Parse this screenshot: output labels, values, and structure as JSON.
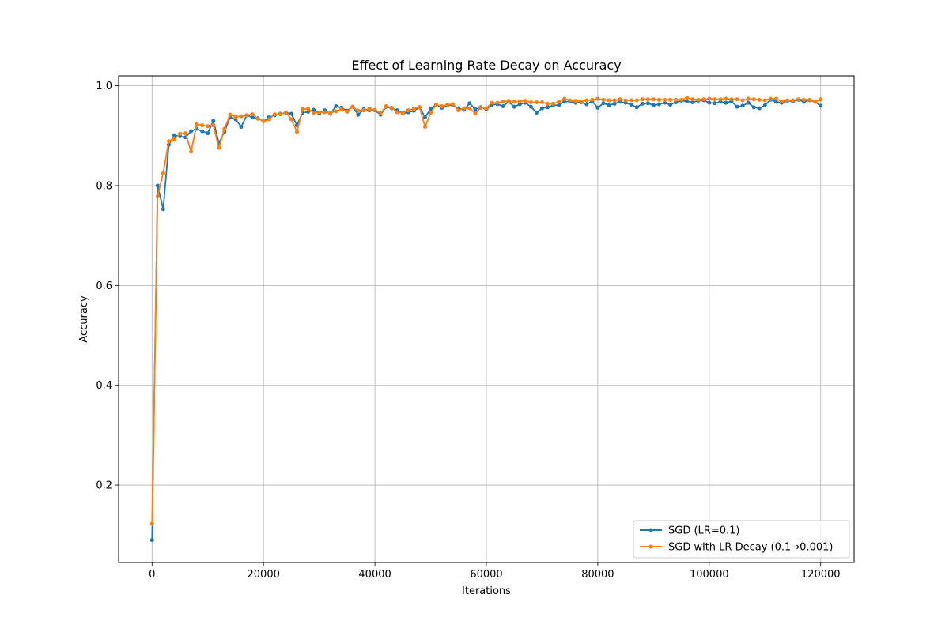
{
  "chart_data": {
    "type": "line",
    "title": "Effect of Learning Rate Decay on Accuracy",
    "xlabel": "Iterations",
    "ylabel": "Accuracy",
    "xlim": [
      -6000,
      126000
    ],
    "ylim": [
      0.045,
      1.02
    ],
    "xticks": [
      0,
      20000,
      40000,
      60000,
      80000,
      100000,
      120000
    ],
    "xtick_labels": [
      "0",
      "20000",
      "40000",
      "60000",
      "80000",
      "100000",
      "120000"
    ],
    "yticks": [
      0.2,
      0.4,
      0.6,
      0.8,
      1.0
    ],
    "ytick_labels": [
      "0.2",
      "0.4",
      "0.6",
      "0.8",
      "1.0"
    ],
    "grid": true,
    "legend_position": "lower-right",
    "x": [
      0,
      1000,
      2000,
      3000,
      4000,
      5000,
      6000,
      7000,
      8000,
      9000,
      10000,
      11000,
      12000,
      13000,
      14000,
      15000,
      16000,
      17000,
      18000,
      19000,
      20000,
      21000,
      22000,
      23000,
      24000,
      25000,
      26000,
      27000,
      28000,
      29000,
      30000,
      31000,
      32000,
      33000,
      34000,
      35000,
      36000,
      37000,
      38000,
      39000,
      40000,
      41000,
      42000,
      43000,
      44000,
      45000,
      46000,
      47000,
      48000,
      49000,
      50000,
      51000,
      52000,
      53000,
      54000,
      55000,
      56000,
      57000,
      58000,
      59000,
      60000,
      61000,
      62000,
      63000,
      64000,
      65000,
      66000,
      67000,
      68000,
      69000,
      70000,
      71000,
      72000,
      73000,
      74000,
      75000,
      76000,
      77000,
      78000,
      79000,
      80000,
      81000,
      82000,
      83000,
      84000,
      85000,
      86000,
      87000,
      88000,
      89000,
      90000,
      91000,
      92000,
      93000,
      94000,
      95000,
      96000,
      97000,
      98000,
      99000,
      100000,
      101000,
      102000,
      103000,
      104000,
      105000,
      106000,
      107000,
      108000,
      109000,
      110000,
      111000,
      112000,
      113000,
      114000,
      115000,
      116000,
      117000,
      118000,
      119000,
      120000
    ],
    "series": [
      {
        "name": "SGD (LR=0.1)",
        "color": "#1f77b4",
        "values": [
          0.09,
          0.8,
          0.753,
          0.882,
          0.901,
          0.899,
          0.897,
          0.909,
          0.914,
          0.909,
          0.905,
          0.93,
          0.885,
          0.908,
          0.937,
          0.933,
          0.918,
          0.941,
          0.937,
          0.935,
          0.929,
          0.937,
          0.941,
          0.944,
          0.946,
          0.944,
          0.921,
          0.946,
          0.948,
          0.952,
          0.945,
          0.951,
          0.944,
          0.959,
          0.956,
          0.95,
          0.958,
          0.942,
          0.953,
          0.951,
          0.951,
          0.942,
          0.958,
          0.955,
          0.951,
          0.945,
          0.947,
          0.95,
          0.957,
          0.937,
          0.954,
          0.962,
          0.956,
          0.961,
          0.961,
          0.955,
          0.952,
          0.965,
          0.953,
          0.957,
          0.953,
          0.962,
          0.963,
          0.959,
          0.968,
          0.958,
          0.963,
          0.966,
          0.958,
          0.946,
          0.955,
          0.957,
          0.961,
          0.961,
          0.968,
          0.969,
          0.966,
          0.967,
          0.963,
          0.969,
          0.956,
          0.965,
          0.961,
          0.964,
          0.968,
          0.966,
          0.962,
          0.957,
          0.964,
          0.965,
          0.961,
          0.963,
          0.966,
          0.962,
          0.967,
          0.97,
          0.969,
          0.967,
          0.97,
          0.971,
          0.966,
          0.965,
          0.968,
          0.966,
          0.969,
          0.958,
          0.96,
          0.966,
          0.957,
          0.955,
          0.961,
          0.972,
          0.968,
          0.966,
          0.97,
          0.969,
          0.972,
          0.968,
          0.971,
          0.968,
          0.96
        ]
      },
      {
        "name": "SGD with LR Decay (0.1→0.001)",
        "color": "#ff7f0e",
        "values": [
          0.123,
          0.779,
          0.825,
          0.889,
          0.893,
          0.904,
          0.905,
          0.868,
          0.923,
          0.921,
          0.919,
          0.921,
          0.876,
          0.914,
          0.942,
          0.938,
          0.939,
          0.941,
          0.943,
          0.934,
          0.929,
          0.933,
          0.943,
          0.943,
          0.947,
          0.933,
          0.908,
          0.953,
          0.954,
          0.946,
          0.947,
          0.947,
          0.946,
          0.949,
          0.953,
          0.948,
          0.958,
          0.95,
          0.951,
          0.954,
          0.952,
          0.945,
          0.959,
          0.956,
          0.947,
          0.946,
          0.951,
          0.954,
          0.957,
          0.918,
          0.946,
          0.962,
          0.959,
          0.962,
          0.963,
          0.951,
          0.955,
          0.955,
          0.945,
          0.956,
          0.955,
          0.966,
          0.966,
          0.968,
          0.97,
          0.968,
          0.969,
          0.97,
          0.967,
          0.967,
          0.967,
          0.964,
          0.964,
          0.968,
          0.974,
          0.971,
          0.97,
          0.969,
          0.971,
          0.972,
          0.974,
          0.972,
          0.971,
          0.971,
          0.973,
          0.971,
          0.971,
          0.971,
          0.973,
          0.973,
          0.973,
          0.972,
          0.972,
          0.972,
          0.972,
          0.972,
          0.976,
          0.973,
          0.972,
          0.973,
          0.974,
          0.973,
          0.973,
          0.974,
          0.973,
          0.973,
          0.971,
          0.974,
          0.973,
          0.972,
          0.971,
          0.974,
          0.974,
          0.969,
          0.971,
          0.971,
          0.973,
          0.972,
          0.972,
          0.968,
          0.973
        ]
      }
    ]
  }
}
